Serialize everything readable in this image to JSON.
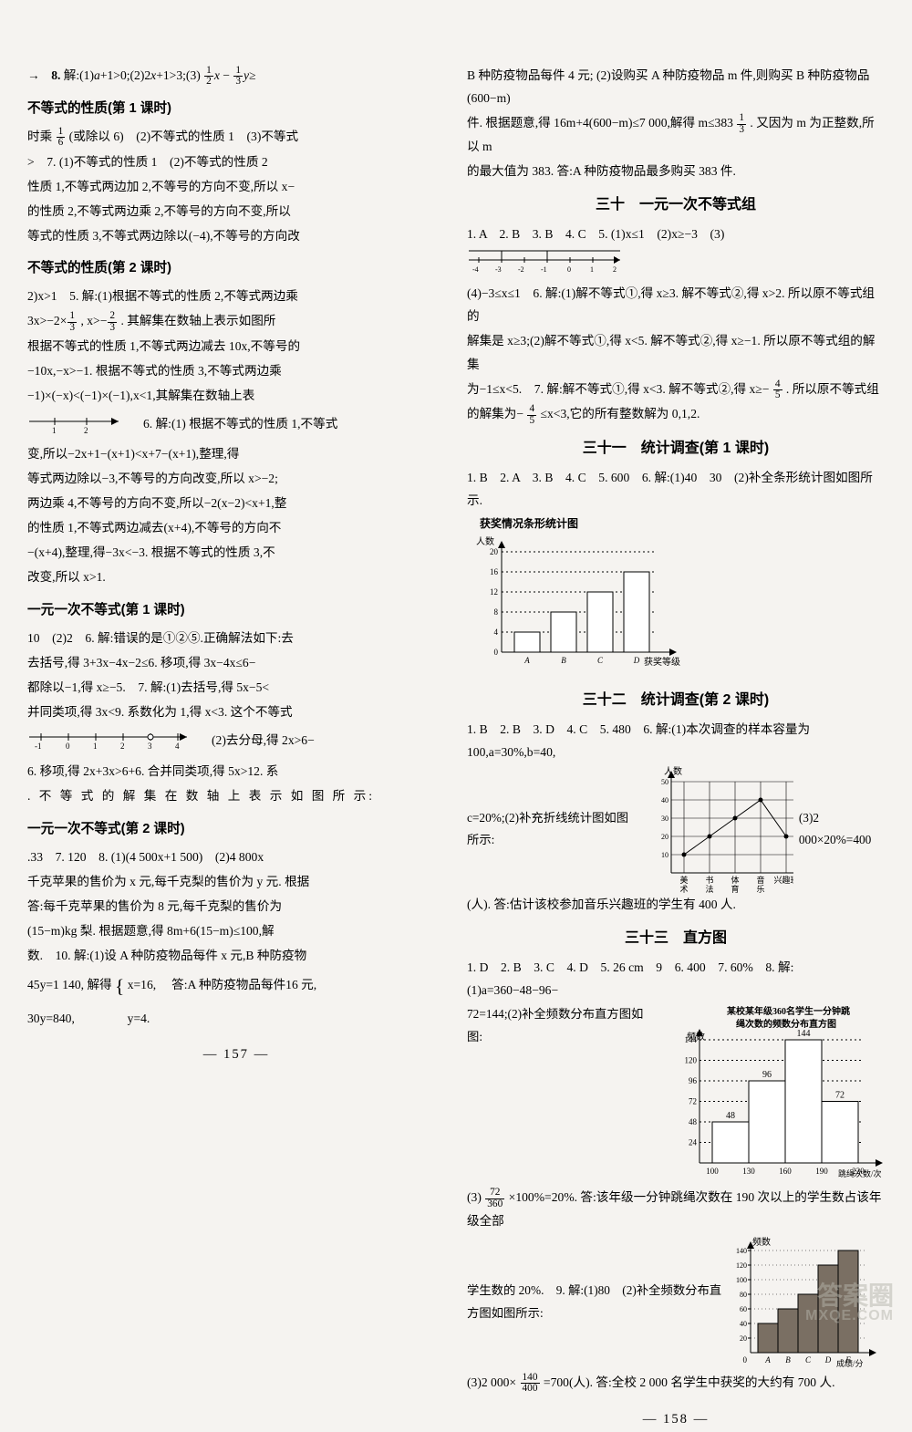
{
  "left": {
    "top_line": "8. 解:(1)a+1>0;(2)2x+1>3;(3) x − y≥",
    "top_frac1_n": "1",
    "top_frac1_d": "2",
    "top_frac2_n": "1",
    "top_frac2_d": "3",
    "h1": "不等式的性质(第 1 课时)",
    "b1_l1": "时乘  (或除以 6)　(2)不等式的性质 1　(3)不等式",
    "b1_frac_n": "1",
    "b1_frac_d": "6",
    "b1_l2": ">　7. (1)不等式的性质 1　(2)不等式的性质 2",
    "b1_l3": "性质 1,不等式两边加 2,不等号的方向不变,所以 x−",
    "b1_l4": "的性质 2,不等式两边乘 2,不等号的方向不变,所以",
    "b1_l5": "等式的性质 3,不等式两边除以(−4),不等号的方向改",
    "h2": "不等式的性质(第 2 课时)",
    "b2_l1": "2)x>1　5. 解:(1)根据不等式的性质 2,不等式两边乘",
    "b2_l2_a": "3x>−2× ,x>−",
    "b2_frac2_n": "1",
    "b2_frac2_d": "3",
    "b2_frac3_n": "2",
    "b2_frac3_d": "3",
    "b2_l2_b": ". 其解集在数轴上表示如图所",
    "b2_l3": "根据不等式的性质 1,不等式两边减去 10x,不等号的",
    "b2_l4": "−10x,−x>−1. 根据不等式的性质 3,不等式两边乘",
    "b2_l5": "−1)×(−x)<(−1)×(−1),x<1,其解集在数轴上表",
    "b2_l6": "6. 解:(1) 根据不等式的性质 1,不等式",
    "b2_l7": "变,所以−2x+1−(x+1)<x+7−(x+1),整理,得",
    "b2_l8": "等式两边除以−3,不等号的方向改变,所以 x>−2;",
    "b2_l9": "两边乘 4,不等号的方向不变,所以−2(x−2)<x+1,整",
    "b2_l10": "的性质 1,不等式两边减去(x+4),不等号的方向不",
    "b2_l11": "−(x+4),整理,得−3x<−3. 根据不等式的性质 3,不",
    "b2_l12": "改变,所以 x>1.",
    "h3": "一元一次不等式(第 1 课时)",
    "b3_l1": "10　(2)2　6. 解:错误的是①②⑤.正确解法如下:去",
    "b3_l2": "去括号,得 3+3x−4x−2≤6. 移项,得 3x−4x≤6−",
    "b3_l3": "都除以−1,得 x≥−5.　7. 解:(1)去括号,得 5x−5<",
    "b3_l4": "并同类项,得 3x<9. 系数化为 1,得 x<3. 这个不等式",
    "b3_l5_after": "(2)去分母,得 2x>6−",
    "b3_l6": "6. 移项,得 2x+3x>6+6. 合并同类项,得 5x>12. 系",
    "b3_l7": ". 不 等 式 的 解 集 在 数 轴 上 表 示 如 图 所 示:",
    "h4": "一元一次不等式(第 2 课时)",
    "b4_l1": ".33　7. 120　8. (1)(4 500x+1 500)　(2)4 800x",
    "b4_l2": "千克苹果的售价为 x 元,每千克梨的售价为 y 元. 根据",
    "b4_l3": "答:每千克苹果的售价为 8 元,每千克梨的售价为",
    "b4_l4": "(15−m)kg 梨. 根据题意,得 8m+6(15−m)≤100,解",
    "b4_l5": "数.　10. 解:(1)设 A 种防疫物品每件 x 元,B 种防疫物",
    "b4_l6a": "45y=1 140,",
    "b4_l6b": "解得",
    "b4_l6c": "x=16,",
    "b4_l6d": "答:A 种防疫物品每件16 元,",
    "b4_l7a": "30y=840,",
    "b4_l7b": "y=4.",
    "page_num": "— 157 —",
    "numline2_ticks": [
      "1",
      "2"
    ],
    "numline3_ticks": [
      "-1",
      "0",
      "1",
      "2",
      "3",
      "4"
    ]
  },
  "right": {
    "top_l1": "B 种防疫物品每件 4 元; (2)设购买 A 种防疫物品 m 件,则购买 B 种防疫物品(600−m)",
    "top_l2a": "件. 根据题意,得 16m+4(600−m)≤7 000,解得 m≤383",
    "top_frac_n": "1",
    "top_frac_d": "3",
    "top_l2b": ". 又因为 m 为正整数,所以 m",
    "top_l3": "的最大值为 383. 答:A 种防疫物品最多购买 383 件.",
    "h30": "三十　一元一次不等式组",
    "a30_l1": "1. A　2. B　3. B　4. C　5. (1)x≤1　(2)x≥−3　(3)",
    "a30_l2": "(4)−3≤x≤1　6. 解:(1)解不等式①,得 x≥3. 解不等式②,得 x>2. 所以原不等式组的",
    "a30_l3": "解集是 x≥3;(2)解不等式①,得 x<5. 解不等式②,得 x≥−1. 所以原不等式组的解集",
    "a30_l4a": "为−1≤x<5.　7. 解:解不等式①,得 x<3. 解不等式②,得 x≥−",
    "a30_frac_n": "4",
    "a30_frac_d": "5",
    "a30_l4b": ". 所以原不等式组",
    "a30_l5a": "的解集为−",
    "a30_l5b": "≤x<3,它的所有整数解为 0,1,2.",
    "nl30_ticks": [
      "-4",
      "-3",
      "-2",
      "-1",
      "0",
      "1",
      "2"
    ],
    "h31": "三十一　统计调查(第 1 课时)",
    "a31_l1": "1. B　2. A　3. B　4. C　5. 600　6. 解:(1)40　30　(2)补全条形统计图如图所示.",
    "chart31_title": "获奖情况条形统计图",
    "chart31_ylabel": "人数",
    "chart31_yticks": [
      0,
      4,
      8,
      12,
      16,
      20
    ],
    "chart31_cats": [
      "A",
      "B",
      "C",
      "D"
    ],
    "chart31_vals": [
      4,
      8,
      12,
      16
    ],
    "chart31_xlabel": "获奖等级",
    "chart31_bar_color": "#ffffff",
    "chart31_border": "#000000",
    "chart31_grid": "#000000",
    "h32": "三十二　统计调查(第 2 课时)",
    "a32_l1": "1. B　2. B　3. D　4. C　5. 480　6. 解:(1)本次调查的样本容量为 100,a=30%,b=40,",
    "a32_l2": "c=20%;(2)补充折线统计图如图所示:",
    "a32_l3": "(3)2 000×20%=400",
    "chart32_ylabel": "人数",
    "chart32_yticks": [
      10,
      20,
      30,
      40,
      50
    ],
    "chart32_cats": [
      "美术",
      "书法",
      "体育",
      "音乐",
      "兴趣班"
    ],
    "chart32_cats_short": [
      "美",
      "书",
      "体",
      "音",
      "兴趣班"
    ],
    "chart32_cats_sub": [
      "术",
      "法",
      "育",
      "乐",
      ""
    ],
    "chart32_vals": [
      10,
      20,
      30,
      40,
      20
    ],
    "chart32_line_color": "#000000",
    "chart32_grid": "#000000",
    "a32_after": "(人). 答:估计该校参加音乐兴趣班的学生有 400 人.",
    "h33": "三十三　直方图",
    "a33_l1": "1. D　2. B　3. C　4. D　5. 26 cm　9　6. 400　7. 60%　8. 解:(1)a=360−48−96−",
    "a33_l2": "72=144;(2)补全频数分布直方图如图:",
    "chart33_title1": "某校某年级360名学生一分钟跳",
    "chart33_title2": "绳次数的频数分布直方图",
    "chart33_ylabel": "频数",
    "chart33_yticks": [
      24,
      48,
      72,
      96,
      120,
      144
    ],
    "chart33_xticks": [
      100,
      130,
      160,
      190,
      220
    ],
    "chart33_vals": [
      48,
      96,
      144,
      72
    ],
    "chart33_labels": [
      "48",
      "96",
      "144",
      "72"
    ],
    "chart33_xlabel": "跳绳次数/次",
    "chart33_bar_color": "#ffffff",
    "chart33_border": "#000000",
    "a33_l3a": "(3)",
    "a33_frac_n": "72",
    "a33_frac_d": "360",
    "a33_l3b": "×100%=20%. 答:该年级一分钟跳绳次数在 190 次以上的学生数占该年级全部",
    "a33_l4": "学生数的 20%.　9. 解:(1)80　(2)补全频数分布直方图如图所示:",
    "chart34_ylabel": "频数",
    "chart34_yticks": [
      20,
      40,
      60,
      80,
      100,
      120,
      140
    ],
    "chart34_cats": [
      "A",
      "B",
      "C",
      "D",
      "E"
    ],
    "chart34_vals": [
      40,
      60,
      80,
      120,
      140
    ],
    "chart34_colors": [
      "#7a6f63",
      "#7a6f63",
      "#7a6f63",
      "#7a6f63",
      "#7a6f63"
    ],
    "chart34_xlabel": "成绩/分",
    "a33_l5a": "(3)2 000×",
    "a33_frac2_n": "140",
    "a33_frac2_d": "400",
    "a33_l5b": "=700(人). 答:全校 2 000 名学生中获奖的大约有 700 人.",
    "page_num": "— 158 —"
  },
  "watermark": {
    "l1": "答案圈",
    "l2": "MXQE.COM"
  }
}
